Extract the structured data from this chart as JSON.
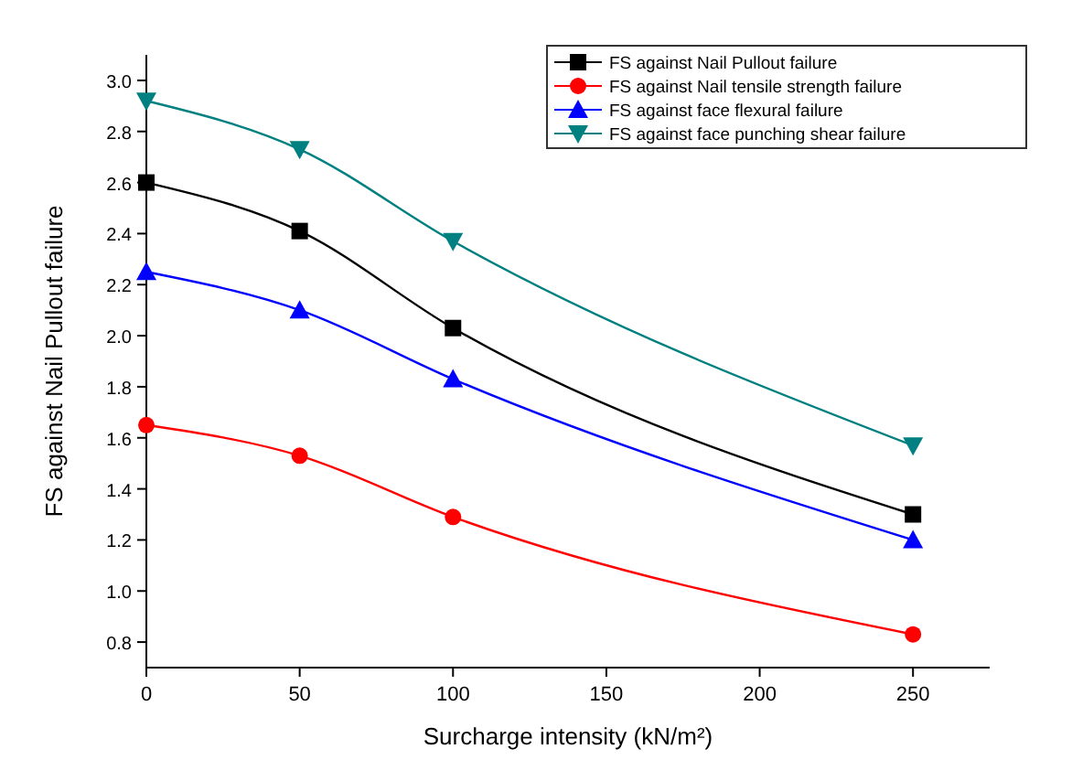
{
  "chart_data": {
    "type": "line",
    "xlabel": "Surcharge intensity (kN/m²)",
    "ylabel": "FS against Nail Pullout failure",
    "x": [
      0,
      50,
      100,
      250
    ],
    "series": [
      {
        "name": "FS against Nail Pullout failure",
        "color": "#000000",
        "marker": "square",
        "values": [
          2.6,
          2.41,
          2.03,
          1.3
        ]
      },
      {
        "name": "FS against  Nail tensile strength failure",
        "color": "#ff0000",
        "marker": "circle",
        "values": [
          1.65,
          1.53,
          1.29,
          0.83
        ]
      },
      {
        "name": "FS against face flexural failure",
        "color": "#0000ff",
        "marker": "triangle",
        "values": [
          2.25,
          2.1,
          1.83,
          1.2
        ]
      },
      {
        "name": "FS against face punching shear failure",
        "color": "#008080",
        "marker": "triangle-down",
        "values": [
          2.92,
          2.73,
          2.37,
          1.57
        ]
      }
    ],
    "xlim": [
      0,
      275
    ],
    "xticks": [
      0,
      50,
      100,
      150,
      200,
      250
    ],
    "ylim": [
      0.7,
      3.1
    ],
    "yticks": [
      0.8,
      {
        "value": 1,
        "label": "1.0"
      },
      1.2,
      1.4,
      1.6,
      1.8,
      {
        "value": 2,
        "label": "2.0"
      },
      2.2,
      2.4,
      2.6,
      2.8,
      {
        "value": 3,
        "label": "3.0"
      }
    ],
    "grid": false,
    "legend": "top right",
    "line_style": "solid"
  }
}
